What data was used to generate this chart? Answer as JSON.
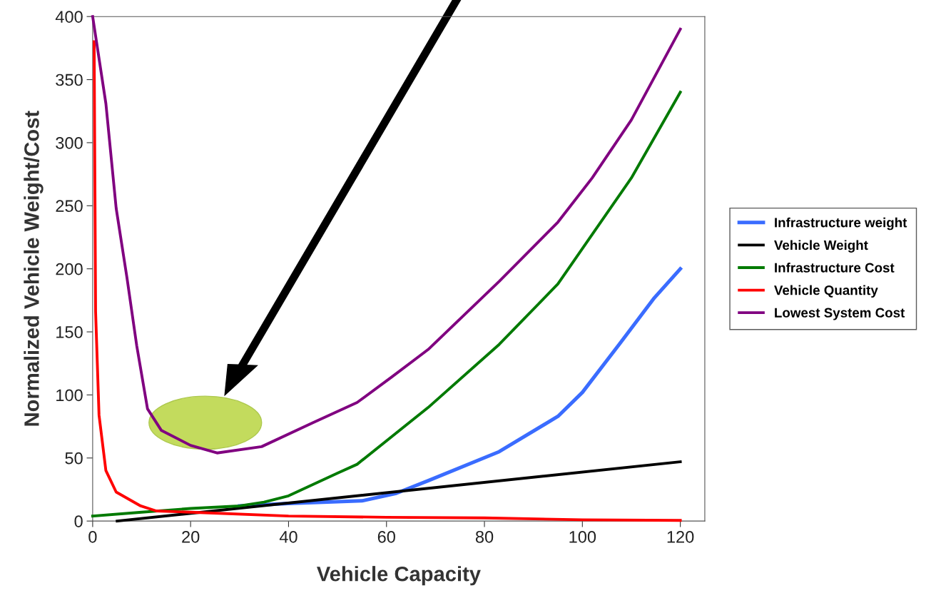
{
  "chart_data": {
    "type": "line",
    "xlabel": "Vehicle Capacity",
    "ylabel": "Normalized Vehicle Weight/Cost",
    "xlim": [
      0,
      125
    ],
    "ylim": [
      0,
      400
    ],
    "xticks": [
      0,
      20,
      40,
      60,
      80,
      100,
      120
    ],
    "yticks": [
      0,
      50,
      100,
      150,
      200,
      250,
      300,
      350,
      400
    ],
    "grid": false,
    "legend": "right",
    "marker": "none",
    "line_style": "solid",
    "series": [
      {
        "name": "Infrastructure weight",
        "color": "#3a6cff",
        "x": [
          30,
          40,
          55,
          62,
          68.5,
          83,
          95,
          100,
          107.5,
          114.7,
          120
        ],
        "values": [
          12,
          14,
          16,
          22,
          32,
          55,
          83,
          102,
          140,
          177,
          200
        ]
      },
      {
        "name": "Vehicle Weight",
        "color": "#000000",
        "x": [
          5,
          120
        ],
        "values": [
          0,
          47
        ]
      },
      {
        "name": "Infrastructure Cost",
        "color": "#007a00",
        "x": [
          0,
          10,
          20,
          30,
          35,
          40,
          50,
          54,
          68.5,
          83,
          95,
          102.5,
          110,
          120
        ],
        "values": [
          4,
          7,
          10,
          12,
          15,
          20,
          38,
          45,
          90,
          140,
          188,
          230,
          272,
          340
        ]
      },
      {
        "name": "Vehicle Quantity",
        "color": "#ff0000",
        "x": [
          0.3,
          0.6,
          1.3,
          2.7,
          4.8,
          9.8,
          13,
          20,
          40,
          60,
          80,
          100,
          120
        ],
        "values": [
          380,
          166,
          84,
          40,
          23,
          12,
          8,
          7,
          4,
          3,
          2.5,
          1,
          0.5
        ]
      },
      {
        "name": "Lowest System Cost",
        "color": "#800080",
        "x": [
          0,
          2.7,
          4.8,
          7,
          9,
          11.2,
          14,
          20,
          25.4,
          34.5,
          45,
          54,
          61,
          68.5,
          83,
          95,
          102,
          110,
          120
        ],
        "values": [
          400,
          331,
          248,
          193,
          139,
          89,
          72,
          60,
          54,
          59,
          78,
          94,
          114,
          136,
          190,
          237,
          272,
          318,
          390
        ]
      }
    ]
  }
}
